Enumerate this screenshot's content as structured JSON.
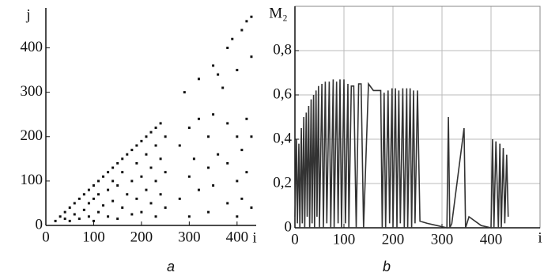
{
  "chart_data": [
    {
      "type": "scatter",
      "caption": "a",
      "xlabel": "i",
      "ylabel": "j",
      "color": "#111111",
      "xlim": [
        0,
        440
      ],
      "ylim": [
        0,
        490
      ],
      "xticks": [
        0,
        100,
        200,
        300,
        400
      ],
      "yticks": [
        0,
        100,
        200,
        300,
        400
      ],
      "grid": false,
      "x": [
        20,
        30,
        40,
        40,
        50,
        50,
        60,
        60,
        70,
        70,
        80,
        80,
        90,
        90,
        90,
        100,
        100,
        100,
        110,
        110,
        110,
        120,
        120,
        130,
        130,
        130,
        140,
        140,
        140,
        150,
        150,
        150,
        160,
        160,
        160,
        170,
        170,
        180,
        180,
        180,
        190,
        190,
        190,
        200,
        200,
        200,
        210,
        210,
        210,
        220,
        220,
        220,
        230,
        230,
        230,
        230,
        240,
        240,
        240,
        250,
        250,
        250,
        280,
        280,
        300,
        300,
        300,
        310,
        320,
        320,
        340,
        340,
        340,
        350,
        350,
        360,
        380,
        380,
        380,
        400,
        400,
        400,
        410,
        410,
        420,
        420,
        430,
        430,
        290,
        320,
        350,
        370,
        390,
        400,
        410,
        420,
        430,
        430,
        380,
        360
      ],
      "y": [
        10,
        20,
        15,
        30,
        10,
        40,
        25,
        50,
        15,
        60,
        35,
        70,
        20,
        50,
        80,
        10,
        60,
        90,
        30,
        70,
        100,
        45,
        110,
        20,
        80,
        120,
        55,
        100,
        130,
        15,
        90,
        140,
        40,
        120,
        150,
        70,
        160,
        25,
        100,
        170,
        60,
        140,
        180,
        30,
        110,
        190,
        80,
        160,
        200,
        50,
        130,
        210,
        20,
        100,
        180,
        220,
        70,
        150,
        230,
        40,
        120,
        200,
        60,
        180,
        20,
        110,
        220,
        150,
        80,
        240,
        30,
        130,
        200,
        90,
        250,
        160,
        50,
        140,
        230,
        20,
        100,
        200,
        60,
        170,
        120,
        240,
        40,
        200,
        300,
        330,
        360,
        310,
        420,
        350,
        440,
        460,
        380,
        470,
        400,
        340
      ]
    },
    {
      "type": "line",
      "caption": "b",
      "xlabel": "i",
      "ylabel": "M₂",
      "xlim": [
        0,
        500
      ],
      "ylim": [
        0,
        1
      ],
      "xticks": [
        0,
        100,
        200,
        300,
        400
      ],
      "yticks": [
        0,
        {
          "value": 0.2,
          "label": "0,2"
        },
        {
          "value": 0.4,
          "label": "0,4"
        },
        {
          "value": 0.6,
          "label": "0,6"
        },
        {
          "value": 0.8,
          "label": "0,8"
        }
      ],
      "grid": true,
      "series": [
        {
          "color": "#333333",
          "x": [
            0,
            3,
            5,
            8,
            10,
            13,
            15,
            18,
            20,
            23,
            25,
            28,
            30,
            33,
            35,
            38,
            40,
            43,
            45,
            48,
            50,
            55,
            58,
            62,
            65,
            70,
            73,
            78,
            80,
            85,
            88,
            92,
            95,
            100,
            103,
            108,
            110,
            115,
            120,
            125,
            130,
            135,
            140,
            150,
            160,
            175,
            178,
            182,
            185,
            190,
            193,
            198,
            200,
            205,
            208,
            212,
            215,
            220,
            223,
            228,
            230,
            235,
            238,
            242,
            245,
            250,
            255,
            270,
            290,
            310,
            313,
            316,
            320,
            345,
            348,
            351,
            355,
            380,
            400,
            403,
            406,
            410,
            415,
            418,
            421,
            425,
            428,
            432,
            435
          ],
          "values": [
            0.05,
            0.4,
            0.02,
            0.38,
            0.0,
            0.45,
            0.02,
            0.5,
            0.0,
            0.52,
            0.05,
            0.55,
            0.0,
            0.58,
            0.02,
            0.6,
            0.0,
            0.62,
            0.05,
            0.64,
            0.0,
            0.65,
            0.0,
            0.66,
            0.02,
            0.66,
            0.0,
            0.67,
            0.0,
            0.66,
            0.02,
            0.67,
            0.0,
            0.67,
            0.02,
            0.65,
            0.0,
            0.64,
            0.64,
            0.0,
            0.65,
            0.65,
            0.0,
            0.65,
            0.62,
            0.62,
            0.0,
            0.61,
            0.0,
            0.62,
            0.02,
            0.63,
            0.0,
            0.63,
            0.0,
            0.62,
            0.02,
            0.63,
            0.0,
            0.63,
            0.0,
            0.63,
            0.0,
            0.62,
            0.02,
            0.62,
            0.03,
            0.02,
            0.01,
            0.0,
            0.5,
            0.0,
            0.02,
            0.45,
            0.0,
            0.02,
            0.05,
            0.01,
            0.0,
            0.4,
            0.0,
            0.39,
            0.0,
            0.38,
            0.0,
            0.36,
            0.02,
            0.33,
            0.05
          ]
        }
      ]
    }
  ]
}
